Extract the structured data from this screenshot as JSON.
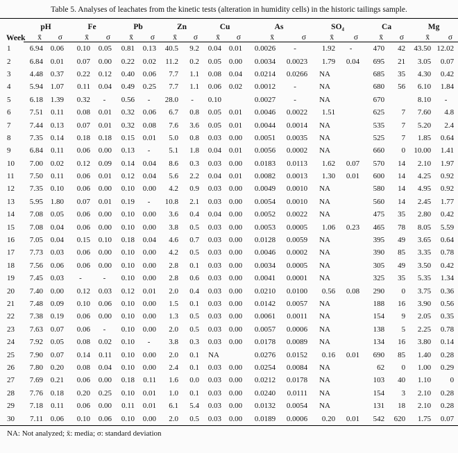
{
  "title": "Table 5. Analyses of leachates from the kinetic tests (alteration in humidity cells) in the historic tailings sample.",
  "footnote": "NA: Not analyzed; x̄: media; σ: standard deviation",
  "table": {
    "week_header": "Week",
    "group_headers": [
      "pH",
      "Fe",
      "Pb",
      "Zn",
      "Cu",
      "As",
      "SO₄",
      "Ca",
      "Mg"
    ],
    "sub_headers": [
      "x̄",
      "σ"
    ],
    "rows": [
      [
        "1",
        "6.94",
        "0.06",
        "0.10",
        "0.05",
        "0.81",
        "0.13",
        "40.5",
        "9.2",
        "0.04",
        "0.01",
        "0.0026",
        "-",
        "1.92",
        "-",
        "470",
        "42",
        "43.50",
        "12.02"
      ],
      [
        "2",
        "6.84",
        "0.01",
        "0.07",
        "0.00",
        "0.22",
        "0.02",
        "11.2",
        "0.2",
        "0.05",
        "0.00",
        "0.0034",
        "0.0023",
        "1.79",
        "0.04",
        "695",
        "21",
        "3.05",
        "0.07"
      ],
      [
        "3",
        "4.48",
        "0.37",
        "0.22",
        "0.12",
        "0.40",
        "0.06",
        "7.7",
        "1.1",
        "0.08",
        "0.04",
        "0.0214",
        "0.0266",
        "NA",
        "",
        "685",
        "35",
        "4.30",
        "0.42"
      ],
      [
        "4",
        "5.94",
        "1.07",
        "0.11",
        "0.04",
        "0.49",
        "0.25",
        "7.7",
        "1.1",
        "0.06",
        "0.02",
        "0.0012",
        "-",
        "NA",
        "",
        "680",
        "56",
        "6.10",
        "1.84"
      ],
      [
        "5",
        "6.18",
        "1.39",
        "0.32",
        "-",
        "0.56",
        "-",
        "28.0",
        "-",
        "0.10",
        "",
        "0.0027",
        "-",
        "NA",
        "",
        "670",
        "",
        "8.10",
        "-"
      ],
      [
        "6",
        "7.51",
        "0.11",
        "0.08",
        "0.01",
        "0.32",
        "0.06",
        "6.7",
        "0.8",
        "0.05",
        "0.01",
        "0.0046",
        "0.0022",
        "1.51",
        "",
        "625",
        "7",
        "7.60",
        "4.8"
      ],
      [
        "7",
        "7.44",
        "0.13",
        "0.07",
        "0.01",
        "0.32",
        "0.08",
        "7.6",
        "3.6",
        "0.05",
        "0.01",
        "0.0044",
        "0.0014",
        "NA",
        "",
        "535",
        "7",
        "5.20",
        "2.4"
      ],
      [
        "8",
        "7.35",
        "0.14",
        "0.18",
        "0.18",
        "0.15",
        "0.01",
        "5.0",
        "0.8",
        "0.03",
        "0.00",
        "0.0051",
        "0.0035",
        "NA",
        "",
        "525",
        "7",
        "1.85",
        "0.64"
      ],
      [
        "9",
        "6.84",
        "0.11",
        "0.06",
        "0.00",
        "0.13",
        "-",
        "5.1",
        "1.8",
        "0.04",
        "0.01",
        "0.0056",
        "0.0002",
        "NA",
        "",
        "660",
        "0",
        "10.00",
        "1.41"
      ],
      [
        "10",
        "7.00",
        "0.02",
        "0.12",
        "0.09",
        "0.14",
        "0.04",
        "8.6",
        "0.3",
        "0.03",
        "0.00",
        "0.0183",
        "0.0113",
        "1.62",
        "0.07",
        "570",
        "14",
        "2.10",
        "1.97"
      ],
      [
        "11",
        "7.50",
        "0.11",
        "0.06",
        "0.01",
        "0.12",
        "0.04",
        "5.6",
        "2.2",
        "0.04",
        "0.01",
        "0.0082",
        "0.0013",
        "1.30",
        "0.01",
        "600",
        "14",
        "4.25",
        "0.92"
      ],
      [
        "12",
        "7.35",
        "0.10",
        "0.06",
        "0.00",
        "0.10",
        "0.00",
        "4.2",
        "0.9",
        "0.03",
        "0.00",
        "0.0049",
        "0.0010",
        "NA",
        "",
        "580",
        "14",
        "4.95",
        "0.92"
      ],
      [
        "13",
        "5.95",
        "1.80",
        "0.07",
        "0.01",
        "0.19",
        "-",
        "10.8",
        "2.1",
        "0.03",
        "0.00",
        "0.0054",
        "0.0010",
        "NA",
        "",
        "560",
        "14",
        "2.45",
        "1.77"
      ],
      [
        "14",
        "7.08",
        "0.05",
        "0.06",
        "0.00",
        "0.10",
        "0.00",
        "3.6",
        "0.4",
        "0.04",
        "0.00",
        "0.0052",
        "0.0022",
        "NA",
        "",
        "475",
        "35",
        "2.80",
        "0.42"
      ],
      [
        "15",
        "7.08",
        "0.04",
        "0.06",
        "0.00",
        "0.10",
        "0.00",
        "3.8",
        "0.5",
        "0.03",
        "0.00",
        "0.0053",
        "0.0005",
        "1.06",
        "0.23",
        "465",
        "78",
        "8.05",
        "5.59"
      ],
      [
        "16",
        "7.05",
        "0.04",
        "0.15",
        "0.10",
        "0.18",
        "0.04",
        "4.6",
        "0.7",
        "0.03",
        "0.00",
        "0.0128",
        "0.0059",
        "NA",
        "",
        "395",
        "49",
        "3.65",
        "0.64"
      ],
      [
        "17",
        "7.73",
        "0.03",
        "0.06",
        "0.00",
        "0.10",
        "0.00",
        "4.2",
        "0.5",
        "0.03",
        "0.00",
        "0.0046",
        "0.0002",
        "NA",
        "",
        "390",
        "85",
        "3.35",
        "0.78"
      ],
      [
        "18",
        "7.56",
        "0.06",
        "0.06",
        "0.00",
        "0.10",
        "0.00",
        "2.8",
        "0.1",
        "0.03",
        "0.00",
        "0.0034",
        "0.0005",
        "NA",
        "",
        "305",
        "49",
        "3.50",
        "0.42"
      ],
      [
        "19",
        "7.45",
        "0.03",
        "-",
        "-",
        "0.10",
        "0.00",
        "2.8",
        "0.6",
        "0.03",
        "0.00",
        "0.0041",
        "0.0001",
        "NA",
        "",
        "325",
        "35",
        "5.35",
        "1.34"
      ],
      [
        "20",
        "7.40",
        "0.00",
        "0.12",
        "0.03",
        "0.12",
        "0.01",
        "2.0",
        "0.4",
        "0.03",
        "0.00",
        "0.0210",
        "0.0100",
        "0.56",
        "0.08",
        "290",
        "0",
        "3.75",
        "0.36"
      ],
      [
        "21",
        "7.48",
        "0.09",
        "0.10",
        "0.06",
        "0.10",
        "0.00",
        "1.5",
        "0.1",
        "0.03",
        "0.00",
        "0.0142",
        "0.0057",
        "NA",
        "",
        "188",
        "16",
        "3.90",
        "0.56"
      ],
      [
        "22",
        "7.38",
        "0.19",
        "0.06",
        "0.00",
        "0.10",
        "0.00",
        "1.3",
        "0.5",
        "0.03",
        "0.00",
        "0.0061",
        "0.0011",
        "NA",
        "",
        "154",
        "9",
        "2.05",
        "0.35"
      ],
      [
        "23",
        "7.63",
        "0.07",
        "0.06",
        "-",
        "0.10",
        "0.00",
        "2.0",
        "0.5",
        "0.03",
        "0.00",
        "0.0057",
        "0.0006",
        "NA",
        "",
        "138",
        "5",
        "2.25",
        "0.78"
      ],
      [
        "24",
        "7.92",
        "0.05",
        "0.08",
        "0.02",
        "0.10",
        "-",
        "3.8",
        "0.3",
        "0.03",
        "0.00",
        "0.0178",
        "0.0089",
        "NA",
        "",
        "134",
        "16",
        "3.80",
        "0.14"
      ],
      [
        "25",
        "7.90",
        "0.07",
        "0.14",
        "0.11",
        "0.10",
        "0.00",
        "2.0",
        "0.1",
        "NA",
        "",
        "0.0276",
        "0.0152",
        "0.16",
        "0.01",
        "690",
        "85",
        "1.40",
        "0.28"
      ],
      [
        "26",
        "7.80",
        "0.20",
        "0.08",
        "0.04",
        "0.10",
        "0.00",
        "2.4",
        "0.1",
        "0.03",
        "0.00",
        "0.0254",
        "0.0084",
        "NA",
        "",
        "62",
        "0",
        "1.00",
        "0.29"
      ],
      [
        "27",
        "7.69",
        "0.21",
        "0.06",
        "0.00",
        "0.18",
        "0.11",
        "1.6",
        "0.0",
        "0.03",
        "0.00",
        "0.0212",
        "0.0178",
        "NA",
        "",
        "103",
        "40",
        "1.10",
        "0"
      ],
      [
        "28",
        "7.76",
        "0.18",
        "0.20",
        "0.25",
        "0.10",
        "0.01",
        "1.0",
        "0.1",
        "0.03",
        "0.00",
        "0.0240",
        "0.0111",
        "NA",
        "",
        "154",
        "3",
        "2.10",
        "0.28"
      ],
      [
        "29",
        "7.18",
        "0.11",
        "0.06",
        "0.00",
        "0.11",
        "0.01",
        "6.1",
        "5.4",
        "0.03",
        "0.00",
        "0.0132",
        "0.0054",
        "NA",
        "",
        "131",
        "18",
        "2.10",
        "0.28"
      ],
      [
        "30",
        "7.11",
        "0.06",
        "0.10",
        "0.06",
        "0.10",
        "0.00",
        "2.0",
        "0.5",
        "0.03",
        "0.00",
        "0.0189",
        "0.0006",
        "0.20",
        "0.01",
        "542",
        "620",
        "1.75",
        "0.07"
      ]
    ]
  }
}
